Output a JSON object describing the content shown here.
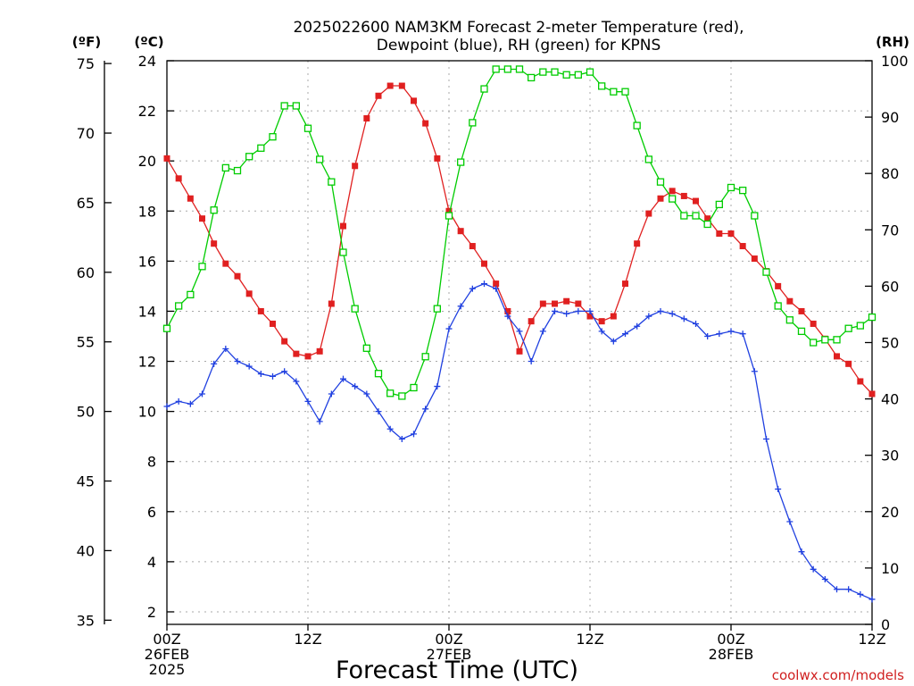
{
  "chart_data": {
    "type": "line",
    "title_line1": "2025022600 NAM3KM Forecast 2-meter Temperature (red),",
    "title_line2": "Dewpoint (blue), RH (green) for KPNS",
    "xlabel": "Forecast Time (UTC)",
    "unit_f": "(ºF)",
    "unit_c": "(ºC)",
    "unit_rh": "(RH)",
    "watermark": "coolwx.com/models",
    "x_range_hours": [
      0,
      60
    ],
    "x_ticks": [
      {
        "hour": 0,
        "lines": [
          "00Z",
          "26FEB",
          "2025"
        ]
      },
      {
        "hour": 12,
        "lines": [
          "12Z"
        ]
      },
      {
        "hour": 24,
        "lines": [
          "00Z",
          "27FEB"
        ]
      },
      {
        "hour": 36,
        "lines": [
          "12Z"
        ]
      },
      {
        "hour": 48,
        "lines": [
          "00Z",
          "28FEB"
        ]
      },
      {
        "hour": 60,
        "lines": [
          "12Z"
        ]
      }
    ],
    "c_axis": {
      "range": [
        1.5,
        24
      ],
      "ticks": [
        2,
        4,
        6,
        8,
        10,
        12,
        14,
        16,
        18,
        20,
        22,
        24
      ]
    },
    "f_axis": {
      "range": [
        34.7,
        75.2
      ],
      "ticks": [
        35,
        40,
        45,
        50,
        55,
        60,
        65,
        70,
        75
      ]
    },
    "rh_axis": {
      "range": [
        0,
        100
      ],
      "ticks": [
        0,
        10,
        20,
        30,
        40,
        50,
        60,
        70,
        80,
        90,
        100
      ]
    },
    "grid": true,
    "colors": {
      "temperature": "#e02020",
      "dewpoint": "#2040e0",
      "rh": "#00cc00"
    },
    "series": [
      {
        "name": "Temperature (red)",
        "axis": "celsius",
        "marker": "filled-square",
        "x": [
          0,
          1,
          2,
          3,
          4,
          5,
          6,
          7,
          8,
          9,
          10,
          11,
          12,
          13,
          14,
          15,
          16,
          17,
          18,
          19,
          20,
          21,
          22,
          23,
          24,
          25,
          26,
          27,
          28,
          29,
          30,
          31,
          32,
          33,
          34,
          35,
          36,
          37,
          38,
          39,
          40,
          41,
          42,
          43,
          44,
          45,
          46,
          47,
          48,
          49,
          50,
          51,
          52,
          53,
          54,
          55,
          56,
          57,
          58,
          59,
          60
        ],
        "values": [
          20.1,
          19.3,
          18.5,
          17.7,
          16.7,
          15.9,
          15.4,
          14.7,
          14.0,
          13.5,
          12.8,
          12.3,
          12.2,
          12.4,
          14.3,
          17.4,
          19.8,
          21.7,
          22.6,
          23.0,
          23.0,
          22.4,
          21.5,
          20.1,
          18.0,
          17.2,
          16.6,
          15.9,
          15.1,
          14.0,
          12.4,
          13.6,
          14.3,
          14.3,
          14.4,
          14.3,
          13.8,
          13.6,
          13.8,
          15.1,
          16.7,
          17.9,
          18.5,
          18.8,
          18.6,
          18.4,
          17.7,
          17.1,
          17.1,
          16.6,
          16.1,
          15.6,
          15.0,
          14.4,
          14.0,
          13.5,
          12.9,
          12.2,
          11.9,
          11.2,
          10.7
        ]
      },
      {
        "name": "Dewpoint (blue)",
        "axis": "celsius",
        "marker": "plus",
        "x": [
          0,
          1,
          2,
          3,
          4,
          5,
          6,
          7,
          8,
          9,
          10,
          11,
          12,
          13,
          14,
          15,
          16,
          17,
          18,
          19,
          20,
          21,
          22,
          23,
          24,
          25,
          26,
          27,
          28,
          29,
          30,
          31,
          32,
          33,
          34,
          35,
          36,
          37,
          38,
          39,
          40,
          41,
          42,
          43,
          44,
          45,
          46,
          47,
          48,
          49,
          50,
          51,
          52,
          53,
          54,
          55,
          56,
          57,
          58,
          59,
          60
        ],
        "values": [
          10.2,
          10.4,
          10.3,
          10.7,
          11.9,
          12.5,
          12.0,
          11.8,
          11.5,
          11.4,
          11.6,
          11.2,
          10.4,
          9.6,
          10.7,
          11.3,
          11.0,
          10.7,
          10.0,
          9.3,
          8.9,
          9.1,
          10.1,
          11.0,
          13.3,
          14.2,
          14.9,
          15.1,
          14.9,
          13.8,
          13.2,
          12.0,
          13.2,
          14.0,
          13.9,
          14.0,
          14.0,
          13.2,
          12.8,
          13.1,
          13.4,
          13.8,
          14.0,
          13.9,
          13.7,
          13.5,
          13.0,
          13.1,
          13.2,
          13.1,
          11.6,
          8.9,
          6.9,
          5.6,
          4.4,
          3.7,
          3.3,
          2.9,
          2.9,
          2.7,
          2.5
        ]
      },
      {
        "name": "RH (green)",
        "axis": "rh",
        "marker": "open-square",
        "x": [
          0,
          1,
          2,
          3,
          4,
          5,
          6,
          7,
          8,
          9,
          10,
          11,
          12,
          13,
          14,
          15,
          16,
          17,
          18,
          19,
          20,
          21,
          22,
          23,
          24,
          25,
          26,
          27,
          28,
          29,
          30,
          31,
          32,
          33,
          34,
          35,
          36,
          37,
          38,
          39,
          40,
          41,
          42,
          43,
          44,
          45,
          46,
          47,
          48,
          49,
          50,
          51,
          52,
          53,
          54,
          55,
          56,
          57,
          58,
          59,
          60
        ],
        "values": [
          52.5,
          56.5,
          58.5,
          63.5,
          73.5,
          81.0,
          80.5,
          83.0,
          84.5,
          86.5,
          92.0,
          92.0,
          88.0,
          82.5,
          78.5,
          66.0,
          56.0,
          49.0,
          44.5,
          41.0,
          40.5,
          42.0,
          47.5,
          56.0,
          72.5,
          82.0,
          89.0,
          95.0,
          98.5,
          98.5,
          98.5,
          97.0,
          98.0,
          98.0,
          97.5,
          97.5,
          98.0,
          95.5,
          94.5,
          94.5,
          88.5,
          82.5,
          78.5,
          75.5,
          72.5,
          72.5,
          71.0,
          74.5,
          77.5,
          77.0,
          72.5,
          62.5,
          56.5,
          54.0,
          52.0,
          50.0,
          50.5,
          50.5,
          52.5,
          53.0,
          54.5
        ]
      }
    ]
  }
}
